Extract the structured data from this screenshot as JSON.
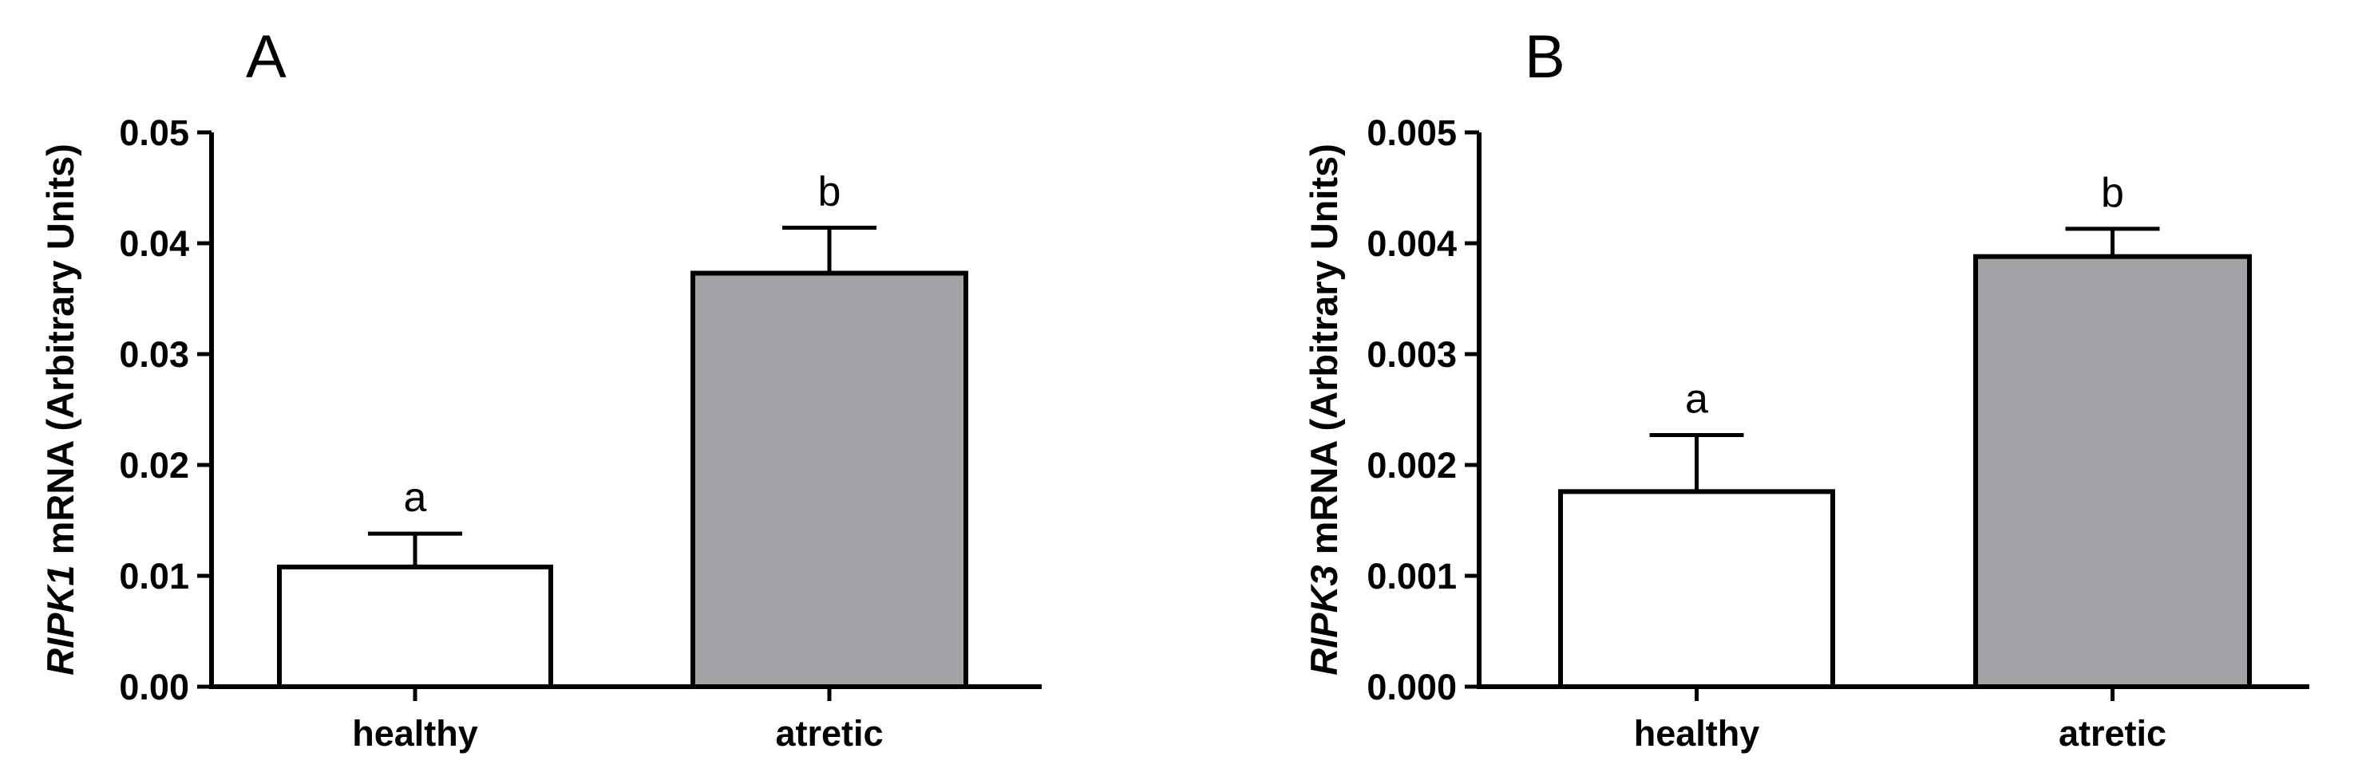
{
  "chart_data": [
    {
      "type": "bar",
      "panel": "A",
      "categories": [
        "healthy",
        "atretic"
      ],
      "values": [
        0.0108,
        0.0373
      ],
      "errors": [
        0.003,
        0.0041
      ],
      "significance": [
        "a",
        "b"
      ],
      "ylabel_gene": "RIPK1",
      "ylabel_rest": " mRNA (Arbitrary Units)",
      "ylim": [
        0,
        0.05
      ],
      "yticks": [
        "0.00",
        "0.01",
        "0.02",
        "0.03",
        "0.04",
        "0.05"
      ],
      "ytick_values": [
        0,
        0.01,
        0.02,
        0.03,
        0.04,
        0.05
      ],
      "bar_colors": [
        "#ffffff",
        "#a3a2a7"
      ],
      "grid": false
    },
    {
      "type": "bar",
      "panel": "B",
      "categories": [
        "healthy",
        "atretic"
      ],
      "values": [
        0.00176,
        0.00388
      ],
      "errors": [
        0.00051,
        0.00025
      ],
      "significance": [
        "a",
        "b"
      ],
      "ylabel_gene": "RIPK3",
      "ylabel_rest": " mRNA (Arbitrary Units)",
      "ylim": [
        0,
        0.005
      ],
      "yticks": [
        "0.000",
        "0.001",
        "0.002",
        "0.003",
        "0.004",
        "0.005"
      ],
      "ytick_values": [
        0,
        0.001,
        0.002,
        0.003,
        0.004,
        0.005
      ],
      "bar_colors": [
        "#ffffff",
        "#a3a2a7"
      ],
      "grid": false
    }
  ]
}
